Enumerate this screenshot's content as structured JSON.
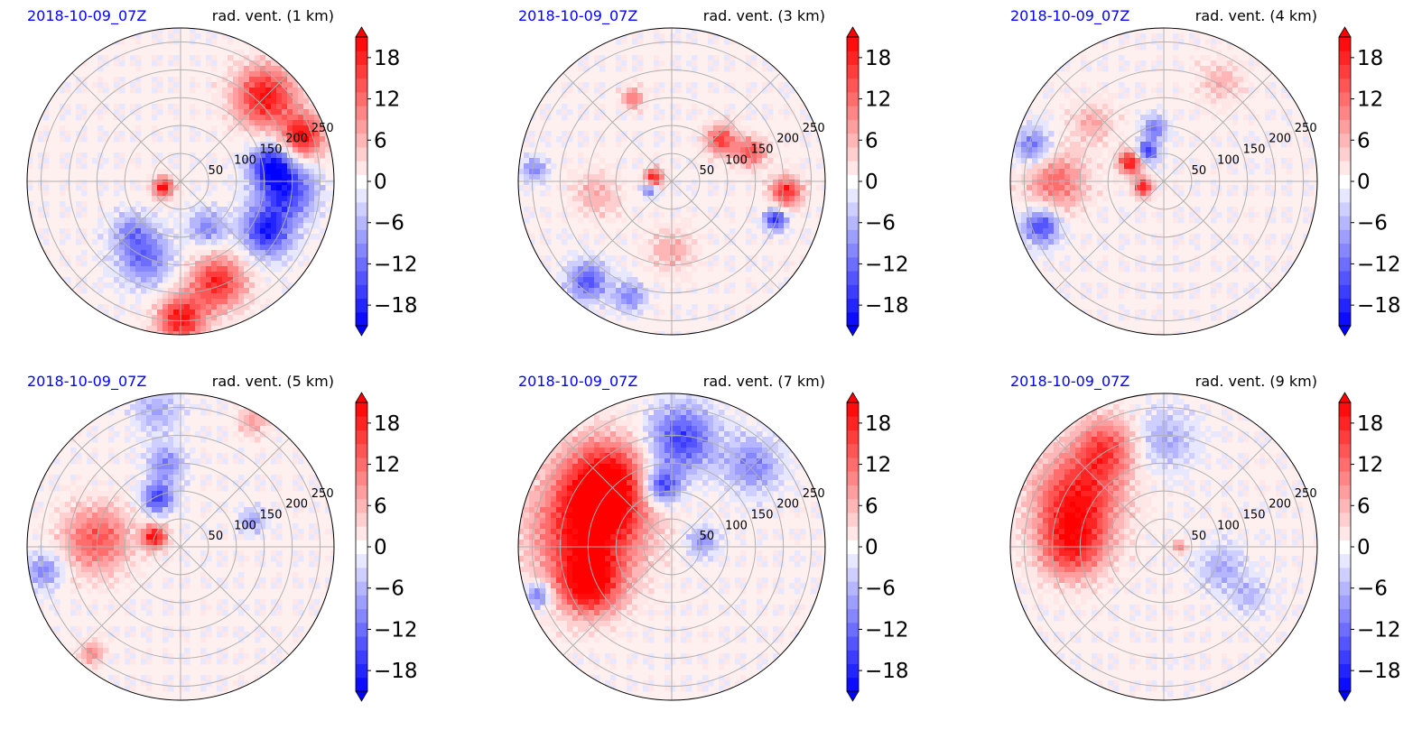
{
  "figure": {
    "panels": [
      {
        "time": "2018-10-09_07Z",
        "title": "rad. vent. (1 km)"
      },
      {
        "time": "2018-10-09_07Z",
        "title": "rad. vent. (3 km)"
      },
      {
        "time": "2018-10-09_07Z",
        "title": "rad. vent. (4 km)"
      },
      {
        "time": "2018-10-09_07Z",
        "title": "rad. vent. (5 km)"
      },
      {
        "time": "2018-10-09_07Z",
        "title": "rad. vent. (7 km)"
      },
      {
        "time": "2018-10-09_07Z",
        "title": "rad. vent. (9 km)"
      }
    ]
  },
  "chart_data": {
    "type": "heatmap",
    "projection": "polar",
    "radial_ticks": [
      "50",
      "100",
      "150",
      "200",
      "250"
    ],
    "radial_max": 275,
    "grid": true,
    "colorbar": {
      "ticks": [
        "18",
        "12",
        "6",
        "0",
        "−6",
        "−12",
        "−18"
      ],
      "tick_values": [
        18,
        12,
        6,
        0,
        -6,
        -12,
        -18
      ],
      "range": [
        -21,
        21
      ],
      "extend": "both",
      "colormap": "bwr"
    },
    "colors": {
      "positive": "#ff0000",
      "negative": "#0000ff",
      "neutral": "#fff0f0",
      "time_label": "#0000ff"
    },
    "fields": [
      {
        "blobs": [
          {
            "a": 45,
            "r": 0.78,
            "s": 0.2,
            "v": 20
          },
          {
            "a": 20,
            "r": 0.85,
            "s": 0.14,
            "v": 20
          },
          {
            "a": 10,
            "r": 0.6,
            "s": 0.14,
            "v": -18
          },
          {
            "a": 355,
            "r": 0.7,
            "s": 0.18,
            "v": -16
          },
          {
            "a": 330,
            "r": 0.65,
            "s": 0.16,
            "v": -18
          },
          {
            "a": 290,
            "r": 0.7,
            "s": 0.18,
            "v": 18
          },
          {
            "a": 270,
            "r": 0.9,
            "s": 0.15,
            "v": 20
          },
          {
            "a": 245,
            "r": 0.55,
            "s": 0.18,
            "v": -12
          },
          {
            "a": 225,
            "r": 0.45,
            "s": 0.12,
            "v": -8
          },
          {
            "a": 200,
            "r": 0.12,
            "s": 0.07,
            "v": 20
          },
          {
            "a": 300,
            "r": 0.35,
            "s": 0.12,
            "v": -10
          }
        ]
      },
      {
        "blobs": [
          {
            "a": 170,
            "r": 0.12,
            "s": 0.06,
            "v": 20
          },
          {
            "a": 200,
            "r": 0.15,
            "s": 0.05,
            "v": -14
          },
          {
            "a": 40,
            "r": 0.42,
            "s": 0.1,
            "v": 16
          },
          {
            "a": 20,
            "r": 0.55,
            "s": 0.1,
            "v": 14
          },
          {
            "a": 355,
            "r": 0.75,
            "s": 0.1,
            "v": 18
          },
          {
            "a": 340,
            "r": 0.72,
            "s": 0.07,
            "v": -18
          },
          {
            "a": 230,
            "r": 0.85,
            "s": 0.13,
            "v": -14
          },
          {
            "a": 250,
            "r": 0.8,
            "s": 0.1,
            "v": -10
          },
          {
            "a": 190,
            "r": 0.5,
            "s": 0.15,
            "v": 7
          },
          {
            "a": 270,
            "r": 0.45,
            "s": 0.15,
            "v": 7
          },
          {
            "a": 175,
            "r": 0.9,
            "s": 0.08,
            "v": -10
          },
          {
            "a": 115,
            "r": 0.6,
            "s": 0.07,
            "v": 12
          }
        ]
      },
      {
        "blobs": [
          {
            "a": 150,
            "r": 0.25,
            "s": 0.08,
            "v": 20
          },
          {
            "a": 195,
            "r": 0.14,
            "s": 0.06,
            "v": 20
          },
          {
            "a": 120,
            "r": 0.22,
            "s": 0.07,
            "v": -18
          },
          {
            "a": 100,
            "r": 0.35,
            "s": 0.08,
            "v": -12
          },
          {
            "a": 180,
            "r": 0.7,
            "s": 0.2,
            "v": 12
          },
          {
            "a": 200,
            "r": 0.85,
            "s": 0.12,
            "v": -16
          },
          {
            "a": 165,
            "r": 0.88,
            "s": 0.12,
            "v": -12
          },
          {
            "a": 60,
            "r": 0.75,
            "s": 0.15,
            "v": 6
          },
          {
            "a": 140,
            "r": 0.6,
            "s": 0.14,
            "v": 7
          }
        ]
      },
      {
        "blobs": [
          {
            "a": 160,
            "r": 0.18,
            "s": 0.08,
            "v": 20
          },
          {
            "a": 115,
            "r": 0.35,
            "s": 0.1,
            "v": -16
          },
          {
            "a": 100,
            "r": 0.55,
            "s": 0.12,
            "v": -10
          },
          {
            "a": 175,
            "r": 0.55,
            "s": 0.22,
            "v": 14
          },
          {
            "a": 190,
            "r": 0.9,
            "s": 0.12,
            "v": -10
          },
          {
            "a": 100,
            "r": 0.9,
            "s": 0.15,
            "v": -7
          },
          {
            "a": 60,
            "r": 0.95,
            "s": 0.1,
            "v": 8
          },
          {
            "a": 230,
            "r": 0.9,
            "s": 0.08,
            "v": 10
          },
          {
            "a": 20,
            "r": 0.5,
            "s": 0.08,
            "v": -8
          }
        ]
      },
      {
        "blobs": [
          {
            "a": 170,
            "r": 0.55,
            "s": 0.35,
            "v": 20
          },
          {
            "a": 135,
            "r": 0.6,
            "s": 0.28,
            "v": 20
          },
          {
            "a": 205,
            "r": 0.6,
            "s": 0.2,
            "v": 18
          },
          {
            "a": 85,
            "r": 0.7,
            "s": 0.22,
            "v": -16
          },
          {
            "a": 100,
            "r": 0.4,
            "s": 0.12,
            "v": -18
          },
          {
            "a": 45,
            "r": 0.75,
            "s": 0.18,
            "v": -10
          },
          {
            "a": 10,
            "r": 0.2,
            "s": 0.1,
            "v": -9
          },
          {
            "a": 200,
            "r": 0.92,
            "s": 0.08,
            "v": -14
          }
        ]
      },
      {
        "blobs": [
          {
            "a": 150,
            "r": 0.65,
            "s": 0.28,
            "v": 18
          },
          {
            "a": 180,
            "r": 0.6,
            "s": 0.22,
            "v": 16
          },
          {
            "a": 120,
            "r": 0.75,
            "s": 0.2,
            "v": 14
          },
          {
            "a": 90,
            "r": 0.7,
            "s": 0.2,
            "v": -7
          },
          {
            "a": 340,
            "r": 0.4,
            "s": 0.15,
            "v": -7
          },
          {
            "a": 330,
            "r": 0.65,
            "s": 0.12,
            "v": -6
          },
          {
            "a": 0,
            "r": 0.1,
            "s": 0.04,
            "v": 12
          }
        ]
      }
    ]
  }
}
